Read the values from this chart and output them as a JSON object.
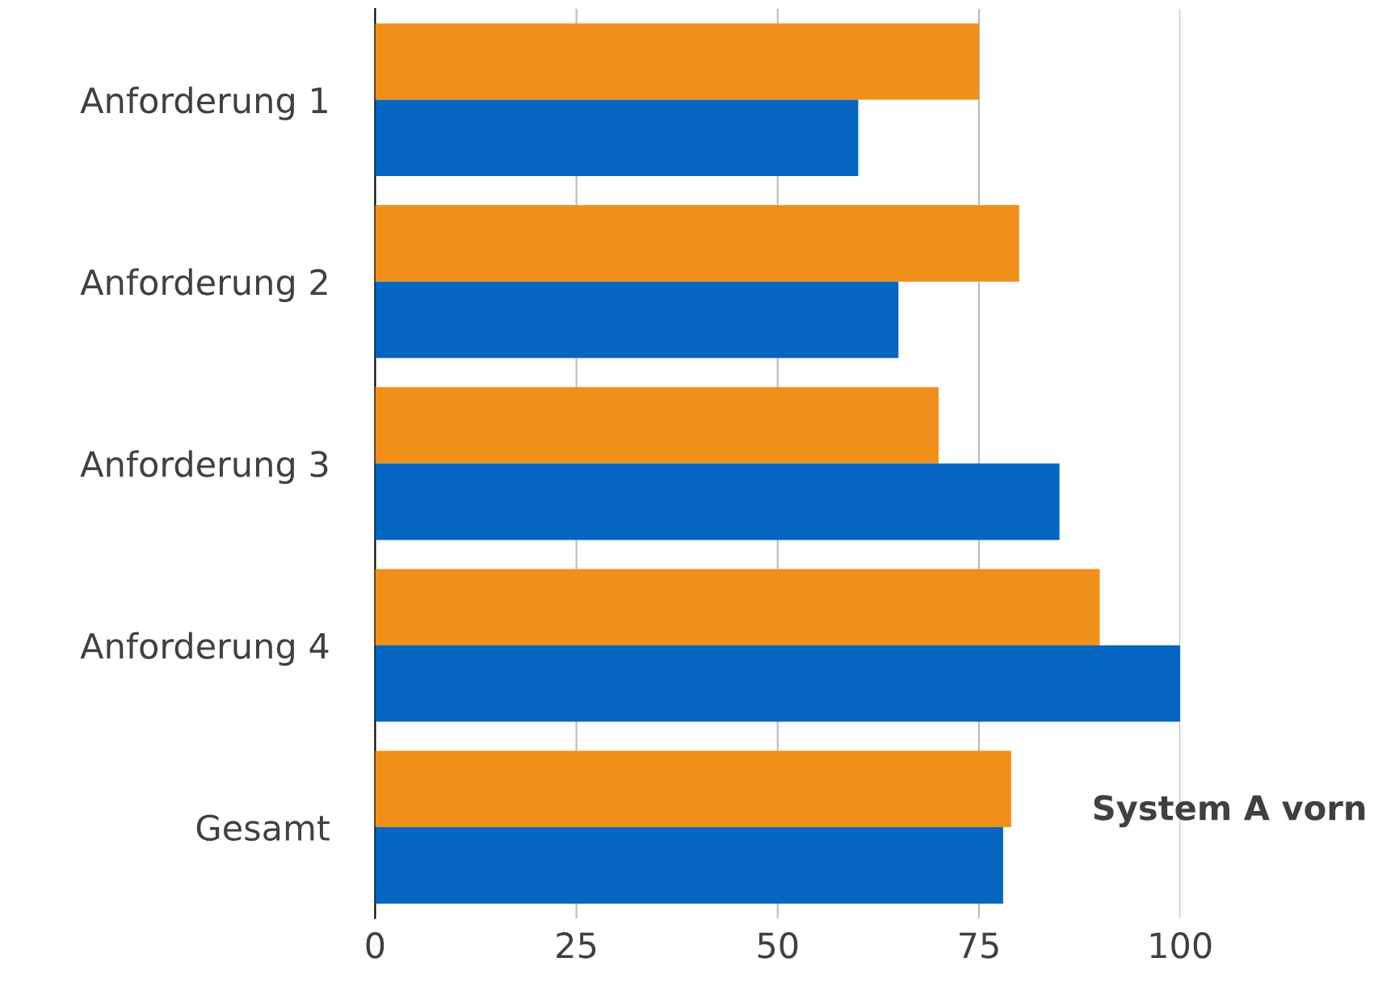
{
  "chart_data": {
    "type": "bar",
    "orientation": "horizontal",
    "categories": [
      "Anforderung 1",
      "Anforderung 2",
      "Anforderung 3",
      "Anforderung 4",
      "Gesamt"
    ],
    "series": [
      {
        "color": "#f0901a",
        "values": [
          75,
          80,
          70,
          90,
          79
        ]
      },
      {
        "color": "#0566c2",
        "values": [
          60,
          65,
          85,
          100,
          78
        ]
      }
    ],
    "xlim": [
      0,
      100
    ],
    "xticks": [
      0,
      25,
      50,
      75,
      100
    ],
    "grid": "x",
    "legend": false,
    "annotations": [
      "System A vorn"
    ]
  }
}
